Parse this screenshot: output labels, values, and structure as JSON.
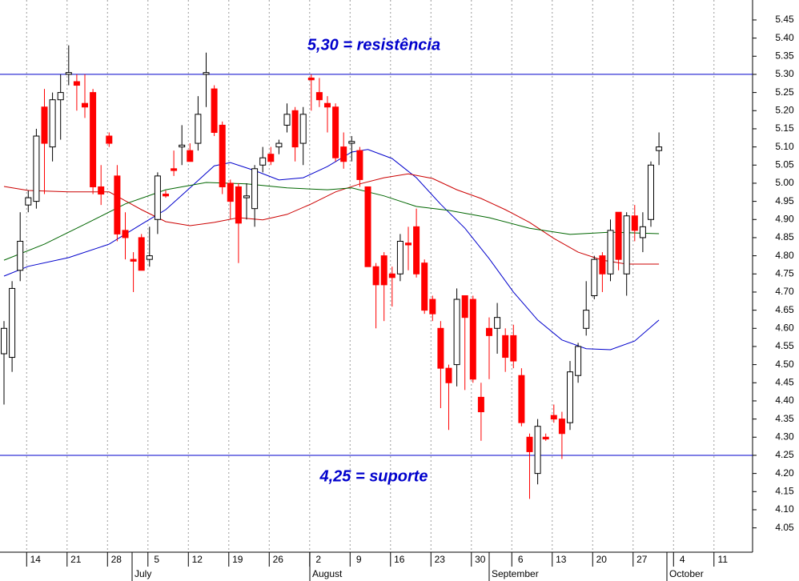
{
  "chart_data": {
    "type": "candlestick",
    "categories": [
      null,
      null,
      null,
      "14",
      null,
      null,
      null,
      null,
      "21",
      null,
      null,
      null,
      null,
      "28",
      null,
      null,
      null,
      null,
      "5",
      null,
      null,
      null,
      null,
      "12",
      null,
      null,
      null,
      null,
      "19",
      null,
      null,
      null,
      null,
      "26",
      null,
      null,
      null,
      null,
      "2",
      null,
      null,
      null,
      null,
      "9",
      null,
      null,
      null,
      null,
      "16",
      null,
      null,
      null,
      null,
      "23",
      null,
      null,
      null,
      null,
      "30",
      null,
      null,
      null,
      null,
      "6",
      null,
      null,
      null,
      null,
      "13",
      null,
      null,
      null,
      null,
      "20",
      null,
      null,
      null,
      null,
      "27",
      null,
      null,
      null,
      null,
      "4",
      null,
      null,
      null,
      null,
      "11"
    ],
    "months": [
      "July",
      "August",
      "September",
      "October"
    ],
    "open": [
      4.53,
      4.52,
      4.76,
      4.94,
      4.95,
      5.21,
      5.1,
      5.23,
      5.3,
      5.28,
      5.22,
      5.25,
      4.99,
      5.13,
      5.02,
      4.87,
      4.79,
      4.85,
      4.79,
      4.9,
      4.97,
      5.04,
      5.1,
      5.09,
      5.11,
      5.3,
      5.26,
      5.16,
      5.0,
      4.99,
      4.96,
      4.93,
      5.05,
      5.08,
      5.1,
      5.16,
      5.2,
      5.11,
      5.29,
      5.25,
      5.22,
      5.21,
      5.1,
      5.11,
      5.09,
      4.99,
      4.77,
      4.8,
      4.75,
      4.75,
      4.835,
      4.88,
      4.78,
      4.68,
      4.6,
      4.49,
      4.5,
      4.69,
      4.68,
      4.41,
      4.6,
      4.6,
      4.58,
      4.58,
      4.47,
      4.3,
      4.2,
      4.3,
      4.36,
      4.35,
      4.34,
      4.47,
      4.6,
      4.69,
      4.8,
      4.75,
      4.92,
      4.75,
      4.91,
      4.85,
      4.9,
      5.09,
      null,
      null,
      null,
      null,
      null,
      null,
      null
    ],
    "high": [
      4.62,
      4.73,
      4.92,
      4.98,
      5.15,
      5.26,
      5.25,
      5.3,
      5.38,
      5.3,
      5.3,
      5.26,
      5.05,
      5.14,
      5.05,
      4.92,
      4.81,
      4.86,
      4.88,
      5.03,
      4.98,
      5.09,
      5.16,
      5.11,
      5.24,
      5.36,
      5.27,
      5.17,
      5.01,
      5.0,
      5.0,
      5.05,
      5.1,
      5.1,
      5.12,
      5.22,
      5.21,
      5.21,
      5.3,
      5.29,
      5.24,
      5.22,
      5.14,
      5.13,
      5.1,
      4.99,
      4.78,
      4.81,
      4.77,
      4.86,
      4.88,
      4.93,
      4.79,
      4.69,
      4.62,
      4.5,
      4.71,
      4.69,
      4.69,
      4.45,
      4.63,
      4.67,
      4.6,
      4.61,
      4.49,
      4.31,
      4.35,
      4.31,
      4.39,
      4.37,
      4.51,
      4.56,
      4.73,
      4.8,
      4.81,
      4.9,
      4.92,
      4.92,
      4.94,
      4.92,
      5.06,
      5.14,
      null,
      null,
      null,
      null,
      null,
      null,
      null
    ],
    "low": [
      4.39,
      4.48,
      4.73,
      4.92,
      4.93,
      4.97,
      5.06,
      5.12,
      5.27,
      5.2,
      5.18,
      4.97,
      4.94,
      5.1,
      4.84,
      4.79,
      4.7,
      4.76,
      4.77,
      4.86,
      4.96,
      5.02,
      5.05,
      5.06,
      5.09,
      5.21,
      5.13,
      4.97,
      4.9,
      4.78,
      4.9,
      4.88,
      5.03,
      5.05,
      5.08,
      5.14,
      5.06,
      5.05,
      5.2,
      5.21,
      5.14,
      5.06,
      5.04,
      5.06,
      4.99,
      4.77,
      4.6,
      4.62,
      4.66,
      4.73,
      4.76,
      4.74,
      4.64,
      4.62,
      4.38,
      4.32,
      4.44,
      4.43,
      4.45,
      4.29,
      4.46,
      4.53,
      4.48,
      4.49,
      4.33,
      4.13,
      4.17,
      4.29,
      4.34,
      4.24,
      4.32,
      4.45,
      4.58,
      4.68,
      4.7,
      4.73,
      4.76,
      4.69,
      4.84,
      4.81,
      4.88,
      5.05,
      null,
      null,
      null,
      null,
      null,
      null,
      null
    ],
    "close": [
      4.6,
      4.71,
      4.84,
      4.96,
      5.13,
      5.11,
      5.23,
      5.25,
      5.305,
      5.27,
      5.21,
      4.99,
      4.97,
      5.11,
      4.86,
      4.85,
      4.785,
      4.76,
      4.8,
      5.02,
      4.965,
      5.035,
      5.105,
      5.06,
      5.19,
      5.305,
      5.14,
      4.99,
      4.95,
      4.89,
      4.965,
      5.04,
      5.07,
      5.06,
      5.11,
      5.19,
      5.1,
      5.19,
      5.285,
      5.23,
      5.21,
      5.07,
      5.06,
      5.115,
      5.01,
      4.77,
      4.72,
      4.72,
      4.74,
      4.84,
      4.83,
      4.75,
      4.65,
      4.64,
      4.49,
      4.45,
      4.68,
      4.63,
      4.46,
      4.37,
      4.58,
      4.63,
      4.52,
      4.51,
      4.34,
      4.26,
      4.33,
      4.295,
      4.35,
      4.31,
      4.48,
      4.55,
      4.65,
      4.79,
      4.75,
      4.87,
      4.79,
      4.91,
      4.87,
      4.88,
      5.05,
      5.1,
      null,
      null,
      null,
      null,
      null,
      null,
      null
    ],
    "up_color": "#ffffff",
    "down_color": "#ff0000",
    "series": [
      {
        "color": "#0000cc",
        "x": [
          0,
          3,
          8,
          13,
          17,
          20,
          23,
          26,
          28,
          31,
          34,
          37,
          40,
          43,
          45,
          48,
          51,
          54,
          57,
          60,
          63,
          66,
          69,
          72,
          75,
          78,
          81
        ],
        "values": [
          4.744,
          4.771,
          4.795,
          4.832,
          4.887,
          4.927,
          4.987,
          5.048,
          5.057,
          5.035,
          5.009,
          5.015,
          5.046,
          5.086,
          5.093,
          5.068,
          5.015,
          4.942,
          4.876,
          4.792,
          4.7,
          4.623,
          4.568,
          4.544,
          4.541,
          4.565,
          4.623
        ]
      },
      {
        "color": "#cc0000",
        "x": [
          0,
          3,
          8,
          13,
          17,
          20,
          23,
          26,
          29,
          32,
          35,
          38,
          41,
          44,
          47,
          50,
          53,
          56,
          59,
          62,
          65,
          68,
          71,
          74,
          77,
          81
        ],
        "values": [
          4.991,
          4.98,
          4.976,
          4.976,
          4.927,
          4.894,
          4.883,
          4.892,
          4.905,
          4.899,
          4.914,
          4.943,
          4.976,
          4.998,
          5.015,
          5.026,
          5.013,
          4.982,
          4.958,
          4.927,
          4.892,
          4.848,
          4.81,
          4.788,
          4.777,
          4.777
        ]
      },
      {
        "color": "#006600",
        "x": [
          0,
          5,
          10,
          15,
          20,
          25,
          30,
          35,
          40,
          43,
          47,
          51,
          55,
          60,
          65,
          70,
          75,
          81
        ],
        "values": [
          4.788,
          4.832,
          4.887,
          4.943,
          4.982,
          5.002,
          4.998,
          4.987,
          4.982,
          4.987,
          4.965,
          4.936,
          4.925,
          4.905,
          4.876,
          4.859,
          4.865,
          4.861
        ]
      }
    ],
    "hlines": [
      {
        "value": 5.3,
        "label": "5,30 = resistência",
        "color": "#0000cc"
      },
      {
        "value": 4.25,
        "label": "4,25 = suporte",
        "color": "#0000cc"
      }
    ],
    "ylim": [
      3.983,
      5.505
    ],
    "yticks": [
      4.05,
      {
        "value": 4.1,
        "label": "4.10"
      },
      4.15,
      {
        "value": 4.2,
        "label": "4.20"
      },
      4.25,
      {
        "value": 4.3,
        "label": "4.30"
      },
      4.35,
      {
        "value": 4.4,
        "label": "4.40"
      },
      4.45,
      {
        "value": 4.5,
        "label": "4.50"
      },
      4.55,
      {
        "value": 4.6,
        "label": "4.60"
      },
      4.65,
      {
        "value": 4.7,
        "label": "4.70"
      },
      4.75,
      {
        "value": 4.8,
        "label": "4.80"
      },
      4.85,
      {
        "value": 4.9,
        "label": "4.90"
      },
      4.95,
      {
        "value": 5.0,
        "label": "5.00"
      },
      5.05,
      {
        "value": 5.1,
        "label": "5.10"
      },
      5.15,
      {
        "value": 5.2,
        "label": "5.20"
      },
      5.25,
      {
        "value": 5.3,
        "label": "5.30"
      },
      5.35,
      {
        "value": 5.4,
        "label": "5.40"
      },
      5.45
    ],
    "grid": true
  }
}
